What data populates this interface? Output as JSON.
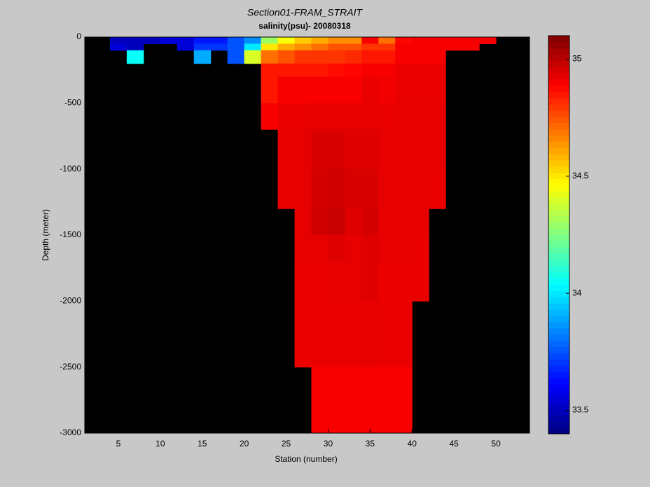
{
  "chart_data": {
    "type": "heatmap",
    "title": "Section01-FRAM_STRAIT",
    "subtitle": "salinity(psu)- 20080318",
    "x_label": "Station (number)",
    "y_label": "Depth (meter)",
    "xlim": [
      1,
      54
    ],
    "xticks": [
      5,
      10,
      15,
      20,
      25,
      30,
      35,
      40,
      45,
      50
    ],
    "ylim": [
      -3000,
      0
    ],
    "yticks": [
      0,
      -500,
      -1000,
      -1500,
      -2000,
      -2500,
      -3000
    ],
    "clim": [
      33.4,
      35.1
    ],
    "cticks": [
      33.5,
      34,
      34.5,
      35
    ],
    "colormap": "jet",
    "background": "#000000",
    "x_edges": [
      4,
      6,
      8,
      10,
      12,
      14,
      16,
      18,
      20,
      22,
      24,
      26,
      28,
      30,
      32,
      34,
      36,
      38,
      40,
      42,
      44,
      46,
      48,
      50
    ],
    "y_edges": [
      0,
      -50,
      -100,
      -200,
      -300,
      -500,
      -700,
      -1000,
      -1300,
      -1500,
      -1700,
      -2000,
      -2500,
      -3000
    ],
    "values": [
      [
        33.5,
        33.55,
        null,
        null,
        null,
        null,
        null,
        null,
        null,
        null,
        null,
        null,
        null
      ],
      [
        33.5,
        33.5,
        34.05,
        null,
        null,
        null,
        null,
        null,
        null,
        null,
        null,
        null,
        null
      ],
      [
        33.5,
        null,
        null,
        null,
        null,
        null,
        null,
        null,
        null,
        null,
        null,
        null,
        null
      ],
      [
        33.55,
        null,
        null,
        null,
        null,
        null,
        null,
        null,
        null,
        null,
        null,
        null,
        null
      ],
      [
        33.55,
        33.55,
        null,
        null,
        null,
        null,
        null,
        null,
        null,
        null,
        null,
        null,
        null
      ],
      [
        33.65,
        33.7,
        33.9,
        null,
        null,
        null,
        null,
        null,
        null,
        null,
        null,
        null,
        null
      ],
      [
        33.65,
        33.7,
        null,
        null,
        null,
        null,
        null,
        null,
        null,
        null,
        null,
        null,
        null
      ],
      [
        33.75,
        33.75,
        33.75,
        null,
        null,
        null,
        null,
        null,
        null,
        null,
        null,
        null,
        null
      ],
      [
        33.85,
        34.0,
        34.4,
        null,
        null,
        null,
        null,
        null,
        null,
        null,
        null,
        null,
        null
      ],
      [
        34.3,
        34.5,
        34.7,
        34.85,
        34.85,
        34.9,
        null,
        null,
        null,
        null,
        null,
        null,
        null
      ],
      [
        34.45,
        34.6,
        34.75,
        34.85,
        34.9,
        34.92,
        34.93,
        34.93,
        null,
        null,
        null,
        null,
        null
      ],
      [
        34.55,
        34.65,
        34.8,
        34.85,
        34.9,
        34.92,
        34.93,
        34.93,
        34.93,
        34.93,
        34.92,
        34.92,
        null
      ],
      [
        34.6,
        34.7,
        34.8,
        34.85,
        34.9,
        34.93,
        34.95,
        34.96,
        34.97,
        34.93,
        34.92,
        34.92,
        34.9
      ],
      [
        34.65,
        34.75,
        34.8,
        34.87,
        34.9,
        34.93,
        34.95,
        34.97,
        34.98,
        34.94,
        34.93,
        34.92,
        34.9
      ],
      [
        34.65,
        34.75,
        34.82,
        34.88,
        34.9,
        34.93,
        34.94,
        34.95,
        34.94,
        34.93,
        34.93,
        34.92,
        34.9
      ],
      [
        34.9,
        34.8,
        34.85,
        34.9,
        34.92,
        34.93,
        34.94,
        34.95,
        34.96,
        34.94,
        34.94,
        34.93,
        34.9
      ],
      [
        34.7,
        34.8,
        34.85,
        34.9,
        34.91,
        34.92,
        34.93,
        34.93,
        34.93,
        34.93,
        34.92,
        34.92,
        34.9
      ],
      [
        34.88,
        34.9,
        34.9,
        34.92,
        34.92,
        34.93,
        34.93,
        34.93,
        34.93,
        34.93,
        34.92,
        34.92,
        34.9
      ],
      [
        34.9,
        34.9,
        34.9,
        34.92,
        34.92,
        34.93,
        34.93,
        34.93,
        34.93,
        34.92,
        34.92,
        null,
        null
      ],
      [
        34.9,
        34.9,
        34.9,
        34.92,
        34.92,
        34.93,
        34.93,
        34.92,
        null,
        null,
        null,
        null,
        null
      ],
      [
        34.9,
        34.9,
        null,
        null,
        null,
        null,
        null,
        null,
        null,
        null,
        null,
        null,
        null
      ],
      [
        34.9,
        34.9,
        null,
        null,
        null,
        null,
        null,
        null,
        null,
        null,
        null,
        null,
        null
      ],
      [
        34.9,
        null,
        null,
        null,
        null,
        null,
        null,
        null,
        null,
        null,
        null,
        null,
        null
      ]
    ]
  }
}
